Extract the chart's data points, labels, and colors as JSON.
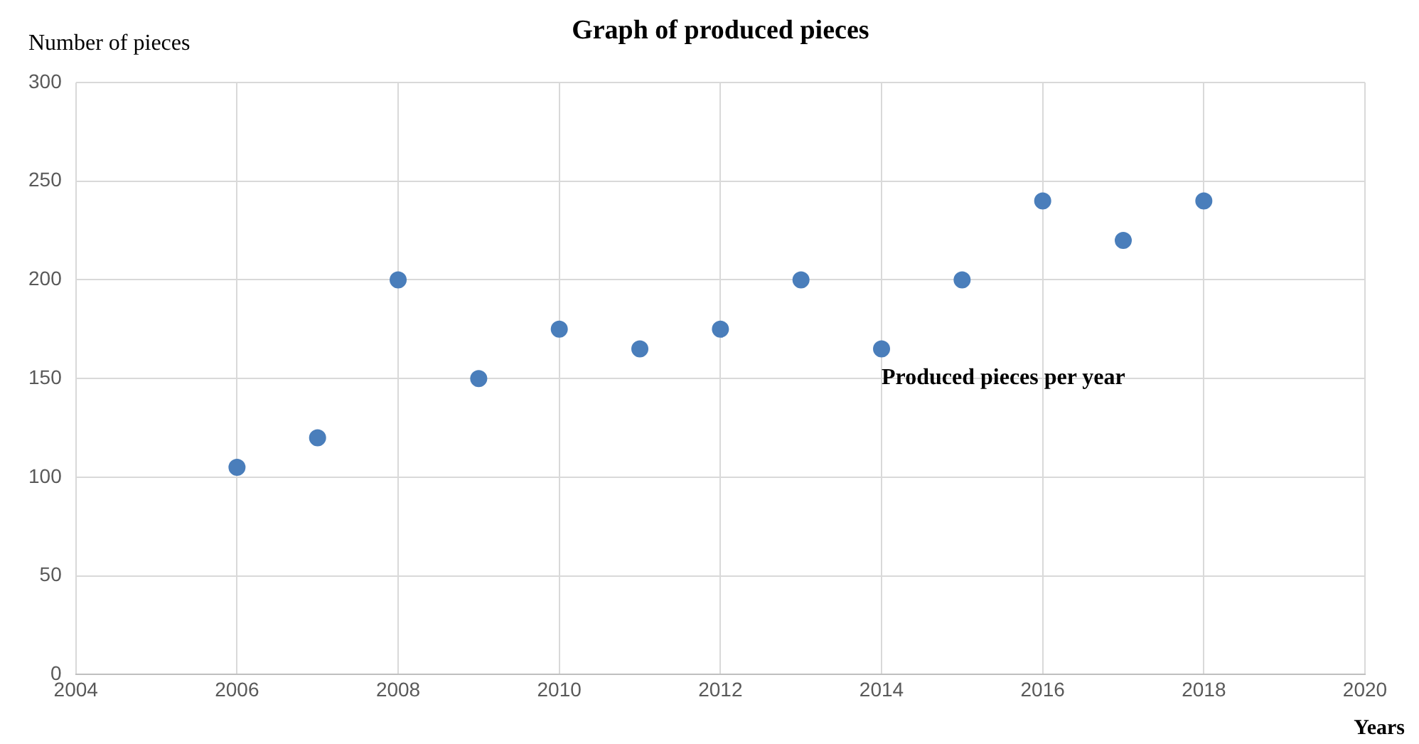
{
  "chart_data": {
    "type": "scatter",
    "title": "Graph of produced pieces",
    "xlabel": "Years",
    "ylabel": "Number of pieces",
    "series": [
      {
        "name": "Produced pieces per year",
        "color": "#4a7ebb",
        "x": [
          2006,
          2007,
          2008,
          2009,
          2010,
          2011,
          2012,
          2013,
          2014,
          2015,
          2016,
          2017,
          2018
        ],
        "values": [
          105,
          120,
          200,
          150,
          175,
          165,
          175,
          200,
          165,
          200,
          240,
          220,
          240
        ]
      }
    ],
    "xlim": [
      2004,
      2020
    ],
    "xticks": [
      2004,
      2006,
      2008,
      2010,
      2012,
      2014,
      2016,
      2018,
      2020
    ],
    "ylim": [
      0,
      300
    ],
    "yticks": [
      0,
      50,
      100,
      150,
      200,
      250,
      300
    ],
    "grid": true,
    "legend": false,
    "marker": "circle"
  }
}
